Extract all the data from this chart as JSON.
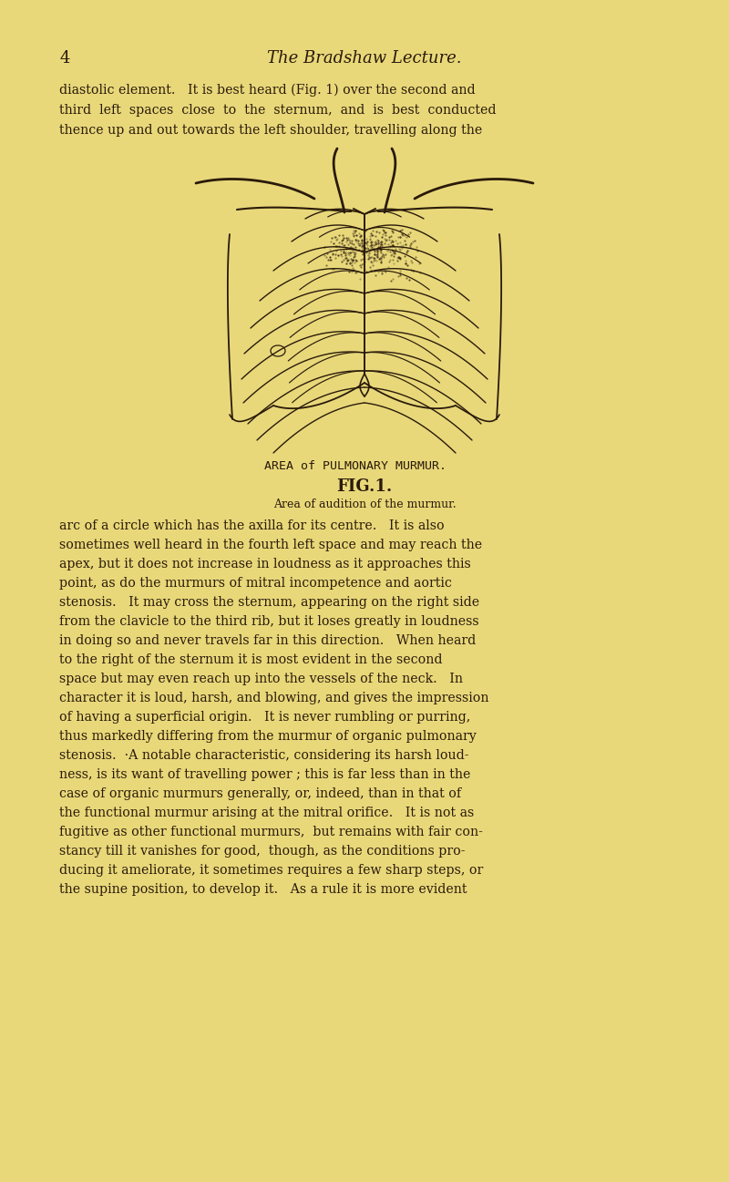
{
  "background_color": "#e8d87a",
  "text_color": "#2a1a0a",
  "title_text": "The Bradshaw Lecture.",
  "page_number": "4",
  "header_fontsize": 13,
  "body_fontsize": 10.2,
  "small_fontsize": 9.0,
  "fig_label1": "AREA of PULMONARY MURMUR.",
  "fig_label2": "FIG.1.",
  "fig_caption": "Area of audition of the murmur.",
  "intro_lines": [
    "diastolic element.   It is best heard (Fig. 1) over the second and",
    "third  left  spaces  close  to  the  sternum,  and  is  best  conducted",
    "thence up and out towards the left shoulder, travelling along the"
  ],
  "body_lines": [
    "arc of a circle which has the axilla for its centre.   It is also",
    "sometimes well heard in the fourth left space and may reach the",
    "apex, but it does not increase in loudness as it approaches this",
    "point, as do the murmurs of mitral incompetence and aortic",
    "stenosis.   It may cross the sternum, appearing on the right side",
    "from the clavicle to the third rib, but it loses greatly in loudness",
    "in doing so and never travels far in this direction.   When heard",
    "to the right of the sternum it is most evident in the second",
    "space but may even reach up into the vessels of the neck.   In",
    "character it is loud, harsh, and blowing, and gives the impression",
    "of having a superficial origin.   It is never rumbling or purring,",
    "thus markedly differing from the murmur of organic pulmonary",
    "stenosis.  ·A notable characteristic, considering its harsh loud-",
    "ness, is its want of travelling power ; this is far less than in the",
    "case of organic murmurs generally, or, indeed, than in that of",
    "the functional murmur arising at the mitral orifice.   It is not as",
    "fugitive as other functional murmurs,  but remains with fair con-",
    "stancy till it vanishes for good,  though, as the conditions pro-",
    "ducing it ameliorate, it sometimes requires a few sharp steps, or",
    "the supine position, to develop it.   As a rule it is more evident"
  ]
}
